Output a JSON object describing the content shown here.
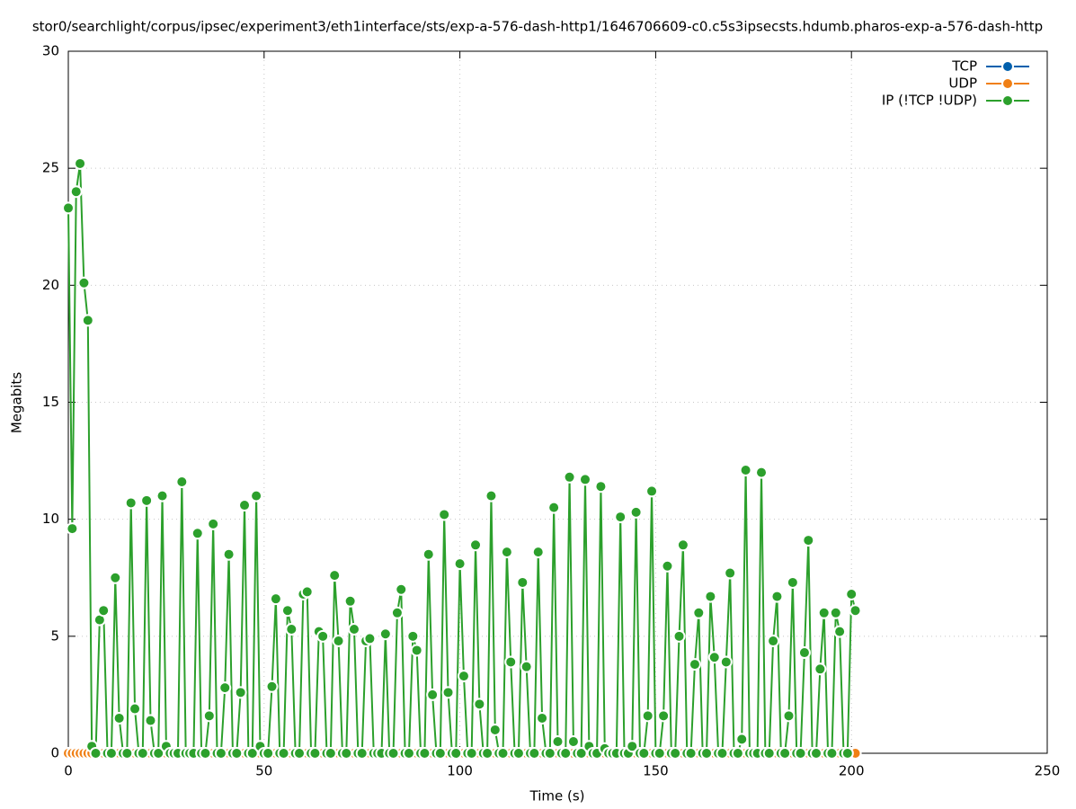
{
  "chart_data": {
    "type": "line",
    "title": "stor0/searchlight/corpus/ipsec/experiment3/eth1interface/sts/exp-a-576-dash-http1/1646706609-c0.c5s3ipsecsts.hdumb.pharos-exp-a-576-dash-http",
    "xlabel": "Time (s)",
    "ylabel": "Megabits",
    "xlim": [
      0,
      250
    ],
    "xticks": [
      0,
      50,
      100,
      150,
      200,
      250
    ],
    "ylim": [
      0,
      30
    ],
    "yticks": [
      0,
      5,
      10,
      15,
      20,
      25,
      30
    ],
    "grid": true,
    "legend": "top-right",
    "x": [
      0,
      1,
      2,
      3,
      4,
      5,
      6,
      7,
      8,
      9,
      10,
      11,
      12,
      13,
      14,
      15,
      16,
      17,
      18,
      19,
      20,
      21,
      22,
      23,
      24,
      25,
      26,
      27,
      28,
      29,
      30,
      31,
      32,
      33,
      34,
      35,
      36,
      37,
      38,
      39,
      40,
      41,
      42,
      43,
      44,
      45,
      46,
      47,
      48,
      49,
      50,
      51,
      52,
      53,
      54,
      55,
      56,
      57,
      58,
      59,
      60,
      61,
      62,
      63,
      64,
      65,
      66,
      67,
      68,
      69,
      70,
      71,
      72,
      73,
      74,
      75,
      76,
      77,
      78,
      79,
      80,
      81,
      82,
      83,
      84,
      85,
      86,
      87,
      88,
      89,
      90,
      91,
      92,
      93,
      94,
      95,
      96,
      97,
      98,
      99,
      100,
      101,
      102,
      103,
      104,
      105,
      106,
      107,
      108,
      109,
      110,
      111,
      112,
      113,
      114,
      115,
      116,
      117,
      118,
      119,
      120,
      121,
      122,
      123,
      124,
      125,
      126,
      127,
      128,
      129,
      130,
      131,
      132,
      133,
      134,
      135,
      136,
      137,
      138,
      139,
      140,
      141,
      142,
      143,
      144,
      145,
      146,
      147,
      148,
      149,
      150,
      151,
      152,
      153,
      154,
      155,
      156,
      157,
      158,
      159,
      160,
      161,
      162,
      163,
      164,
      165,
      166,
      167,
      168,
      169,
      170,
      171,
      172,
      173,
      174,
      175,
      176,
      177,
      178,
      179,
      180,
      181,
      182,
      183,
      184,
      185,
      186,
      187,
      188,
      189,
      190,
      191,
      192,
      193,
      194,
      195,
      196,
      197,
      198,
      199,
      200,
      201
    ],
    "series": [
      {
        "name": "TCP",
        "color": "#0060ad",
        "values": [
          0,
          0,
          0,
          0,
          0,
          0,
          0,
          0,
          0,
          0,
          0,
          0,
          0,
          0,
          0,
          0,
          0,
          0,
          0,
          0,
          0,
          0,
          0,
          0,
          0,
          0,
          0,
          0,
          0,
          0,
          0,
          0,
          0,
          0,
          0,
          0,
          0,
          0,
          0,
          0,
          0,
          0,
          0,
          0,
          0,
          0,
          0,
          0,
          0,
          0,
          0,
          0,
          0,
          0,
          0,
          0,
          0,
          0,
          0,
          0,
          0,
          0,
          0,
          0,
          0,
          0,
          0,
          0,
          0,
          0,
          0,
          0,
          0,
          0,
          0,
          0,
          0,
          0,
          0,
          0,
          0,
          0,
          0,
          0,
          0,
          0,
          0,
          0,
          0,
          0,
          0,
          0,
          0,
          0,
          0,
          0,
          0,
          0,
          0,
          0,
          0,
          0,
          0,
          0,
          0,
          0,
          0,
          0,
          0,
          0,
          0,
          0,
          0,
          0,
          0,
          0,
          0,
          0,
          0,
          0,
          0,
          0,
          0,
          0,
          0,
          0,
          0,
          0,
          0,
          0,
          0,
          0,
          0,
          0,
          0,
          0,
          0,
          0,
          0,
          0,
          0,
          0,
          0,
          0,
          0,
          0,
          0,
          0,
          0,
          0,
          0,
          0,
          0,
          0,
          0,
          0,
          0,
          0,
          0,
          0,
          0,
          0,
          0,
          0,
          0,
          0,
          0,
          0,
          0,
          0,
          0,
          0,
          0,
          0,
          0,
          0,
          0,
          0,
          0,
          0,
          0,
          0,
          0,
          0,
          0,
          0,
          0,
          0,
          0,
          0,
          0,
          0,
          0,
          0,
          0,
          0,
          0,
          0,
          0,
          0,
          0,
          0
        ]
      },
      {
        "name": "UDP",
        "color": "#f07f14",
        "values": [
          0,
          0,
          0,
          0,
          0,
          0,
          0,
          0,
          0,
          0,
          0,
          0,
          0,
          0,
          0,
          0,
          0,
          0,
          0,
          0,
          0,
          0,
          0,
          0,
          0,
          0,
          0,
          0,
          0,
          0,
          0,
          0,
          0,
          0,
          0,
          0,
          0,
          0,
          0,
          0,
          0,
          0,
          0,
          0,
          0,
          0,
          0,
          0,
          0,
          0,
          0,
          0,
          0,
          0,
          0,
          0,
          0,
          0,
          0,
          0,
          0,
          0,
          0,
          0,
          0,
          0,
          0,
          0,
          0,
          0,
          0,
          0,
          0,
          0,
          0,
          0,
          0,
          0,
          0,
          0,
          0,
          0,
          0,
          0,
          0,
          0,
          0,
          0,
          0,
          0,
          0,
          0,
          0,
          0,
          0,
          0,
          0,
          0,
          0,
          0,
          0,
          0,
          0,
          0,
          0,
          0,
          0,
          0,
          0,
          0,
          0,
          0,
          0,
          0,
          0,
          0,
          0,
          0,
          0,
          0,
          0,
          0,
          0,
          0,
          0,
          0,
          0,
          0,
          0,
          0,
          0,
          0,
          0,
          0,
          0,
          0,
          0,
          0,
          0,
          0,
          0,
          0,
          0,
          0,
          0,
          0,
          0,
          0,
          0,
          0,
          0,
          0,
          0,
          0,
          0,
          0,
          0,
          0,
          0,
          0,
          0,
          0,
          0,
          0,
          0,
          0,
          0,
          0,
          0,
          0,
          0,
          0,
          0,
          0,
          0,
          0,
          0,
          0,
          0,
          0,
          0,
          0,
          0,
          0,
          0,
          0,
          0,
          0,
          0,
          0,
          0,
          0,
          0,
          0,
          0,
          0,
          0,
          0,
          0,
          0,
          0,
          0
        ]
      },
      {
        "name": "IP (!TCP  !UDP)",
        "color": "#2ca02c",
        "values": [
          23.3,
          9.6,
          24.0,
          25.2,
          20.1,
          18.5,
          0.3,
          0,
          5.7,
          6.1,
          0,
          0,
          7.5,
          1.5,
          0,
          0,
          10.7,
          1.9,
          0,
          0,
          10.8,
          1.4,
          0,
          0,
          11.0,
          0.3,
          0,
          0,
          0,
          11.6,
          0,
          0,
          0,
          9.4,
          0,
          0,
          1.6,
          9.8,
          0,
          0,
          2.8,
          8.5,
          0,
          0,
          2.6,
          10.6,
          0,
          0,
          11.0,
          0.3,
          0,
          0,
          2.85,
          6.6,
          0,
          0,
          6.1,
          5.3,
          0,
          0,
          6.8,
          6.9,
          0,
          0,
          5.2,
          5.0,
          0,
          0,
          7.6,
          4.8,
          0,
          0,
          6.5,
          5.3,
          0,
          0,
          4.8,
          4.9,
          0,
          0,
          0,
          5.1,
          0,
          0,
          6.0,
          7.0,
          0,
          0,
          5.0,
          4.4,
          0,
          0,
          8.5,
          2.5,
          0,
          0,
          10.2,
          2.6,
          0,
          0,
          8.1,
          3.3,
          0,
          0,
          8.9,
          2.1,
          0,
          0,
          11.0,
          1.0,
          0,
          0,
          8.6,
          3.9,
          0,
          0,
          7.3,
          3.7,
          0,
          0,
          8.6,
          1.5,
          0,
          0,
          10.5,
          0.5,
          0,
          0,
          11.8,
          0.5,
          0,
          0,
          11.7,
          0.3,
          0,
          0,
          11.4,
          0.2,
          0,
          0,
          0,
          10.1,
          0,
          0,
          0.3,
          10.3,
          0,
          0,
          1.6,
          11.2,
          0,
          0,
          1.6,
          8.0,
          0,
          0,
          5.0,
          8.9,
          0,
          0,
          3.8,
          6.0,
          0,
          0,
          6.7,
          4.1,
          0,
          0,
          3.9,
          7.7,
          0,
          0,
          0.6,
          12.1,
          0,
          0,
          0,
          12.0,
          0,
          0,
          4.8,
          6.7,
          0,
          0,
          1.6,
          7.3,
          0,
          0,
          4.3,
          9.1,
          0,
          0,
          3.6,
          6.0,
          0,
          0,
          6.0,
          5.2,
          0,
          0,
          6.8,
          6.1
        ]
      }
    ]
  }
}
